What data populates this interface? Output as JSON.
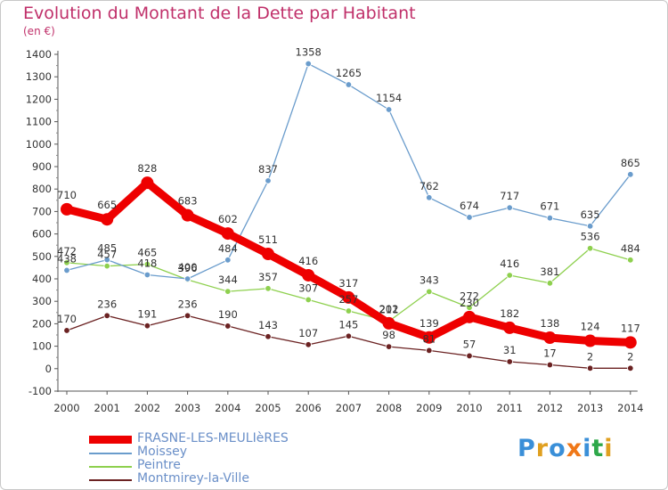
{
  "page": {
    "title": "Evolution du Montant de la Dette par Habitant",
    "subtitle": "(en €)"
  },
  "logo": {
    "text": "Proxiti",
    "colors": [
      "#3a8fd8",
      "#e0a020",
      "#3a8fd8",
      "#f07818",
      "#3a8fd8",
      "#2ea84a",
      "#e0a020"
    ]
  },
  "chart_data": {
    "type": "line",
    "title": "Evolution du Montant de la Dette par Habitant",
    "subtitle": "(en €)",
    "x": [
      "2000",
      "2001",
      "2002",
      "2003",
      "2004",
      "2005",
      "2006",
      "2007",
      "2008",
      "2009",
      "2010",
      "2011",
      "2012",
      "2013",
      "2014"
    ],
    "ylim": [
      -100,
      1400
    ],
    "yticks": [
      -100,
      0,
      100,
      200,
      300,
      400,
      500,
      600,
      700,
      800,
      900,
      1000,
      1100,
      1200,
      1300,
      1400
    ],
    "grid": false,
    "legend_position": "bottom-left",
    "series": [
      {
        "name": "FRASNE-LES-MEULIèRES",
        "color": "#ee0000",
        "values": [
          710,
          665,
          828,
          683,
          602,
          511,
          416,
          317,
          202,
          139,
          230,
          182,
          138,
          124,
          117
        ],
        "labels": [
          "710",
          "665",
          "828",
          "683",
          "602",
          "511",
          "416",
          "317",
          "202",
          "139",
          "230",
          "182",
          "138",
          "124",
          "117"
        ]
      },
      {
        "name": "Moissey",
        "color": "#6a9ccc",
        "values": [
          438,
          485,
          418,
          400,
          484,
          837,
          1358,
          1265,
          1154,
          762,
          674,
          717,
          671,
          635,
          865
        ],
        "labels": [
          "438",
          "485",
          "418",
          "400",
          "484",
          "837",
          "1358",
          "1265",
          "1154",
          "762",
          "674",
          "717",
          "671",
          "635",
          "865"
        ]
      },
      {
        "name": "Peintre",
        "color": "#8ed04e",
        "values": [
          472,
          457,
          465,
          396,
          344,
          357,
          307,
          257,
          211,
          343,
          272,
          416,
          381,
          536,
          484
        ],
        "labels": [
          "472",
          "457",
          "465",
          "396",
          "344",
          "357",
          "307",
          "257",
          "211",
          "343",
          "272",
          "416",
          "381",
          "536",
          "484"
        ]
      },
      {
        "name": "Montmirey-la-Ville",
        "color": "#6b2222",
        "values": [
          170,
          236,
          191,
          236,
          190,
          143,
          107,
          145,
          98,
          81,
          57,
          31,
          17,
          2,
          2
        ],
        "labels": [
          "170",
          "236",
          "191",
          "236",
          "190",
          "143",
          "107",
          "145",
          "98",
          "81",
          "57",
          "31",
          "17",
          "2",
          "2"
        ]
      }
    ]
  }
}
